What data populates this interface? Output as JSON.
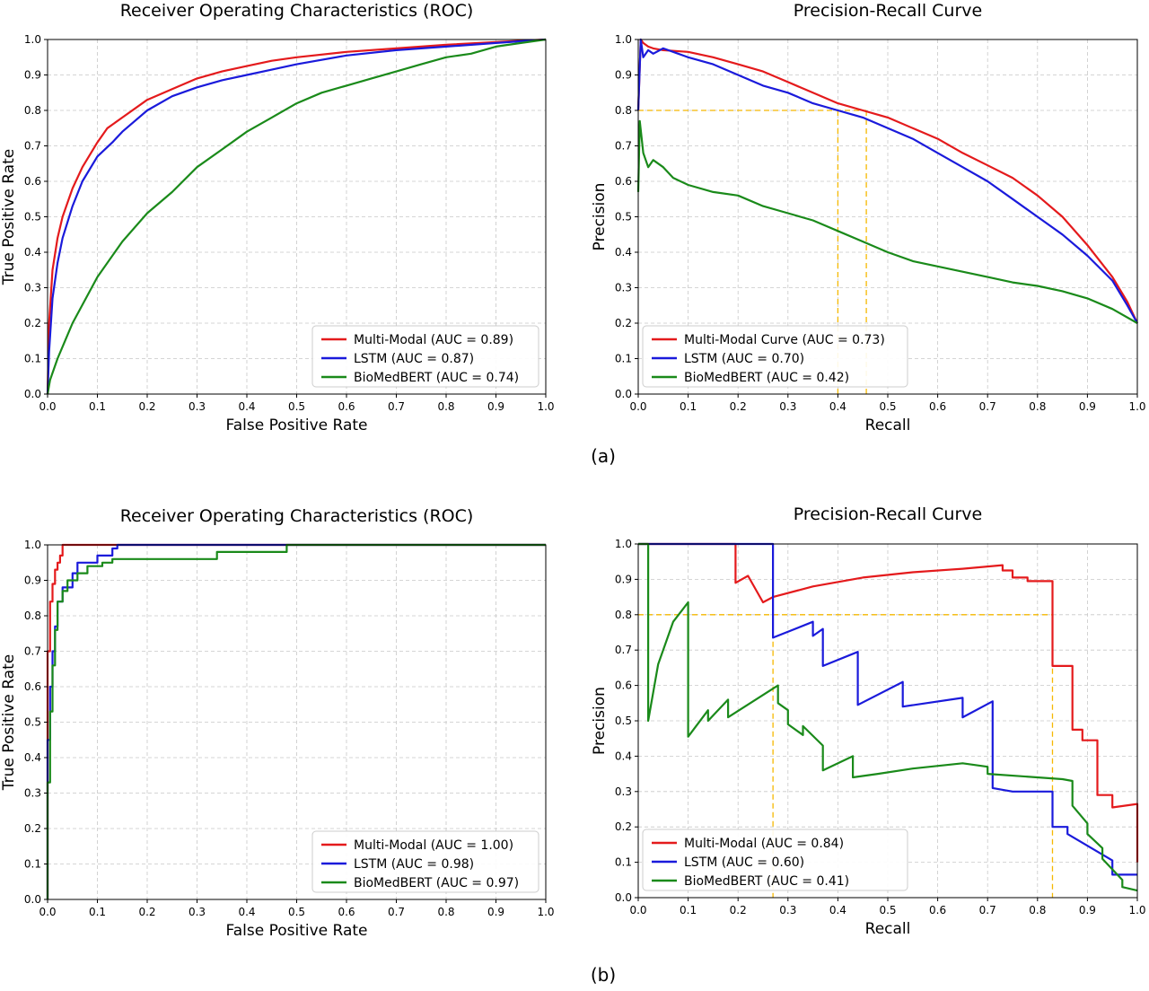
{
  "captions": [
    "(a)",
    "(b)"
  ],
  "chart_data": [
    {
      "type": "line",
      "panel": "(a)",
      "title": "Receiver Operating Characteristics (ROC)",
      "xlabel": "False Positive Rate",
      "ylabel": "True Positive Rate",
      "xlim": [
        0,
        1
      ],
      "ylim": [
        0,
        1
      ],
      "xticks": [
        "0.0",
        "0.1",
        "0.2",
        "0.3",
        "0.4",
        "0.5",
        "0.6",
        "0.7",
        "0.8",
        "0.9",
        "1.0"
      ],
      "yticks": [
        "0.0",
        "0.1",
        "0.2",
        "0.3",
        "0.4",
        "0.5",
        "0.6",
        "0.7",
        "0.8",
        "0.9",
        "1.0"
      ],
      "grid": true,
      "legend_position": "lower-right",
      "series": [
        {
          "name": "Multi-Modal (AUC = 0.89)",
          "color": "#e41a1c",
          "x": [
            0,
            0.003,
            0.01,
            0.02,
            0.03,
            0.05,
            0.07,
            0.1,
            0.12,
            0.15,
            0.2,
            0.25,
            0.3,
            0.35,
            0.4,
            0.45,
            0.5,
            0.6,
            0.7,
            0.8,
            0.9,
            1.0
          ],
          "y": [
            0,
            0.2,
            0.35,
            0.44,
            0.5,
            0.58,
            0.64,
            0.71,
            0.75,
            0.78,
            0.83,
            0.86,
            0.89,
            0.91,
            0.925,
            0.94,
            0.95,
            0.965,
            0.975,
            0.985,
            0.993,
            1.0
          ]
        },
        {
          "name": "LSTM (AUC = 0.87)",
          "color": "#1a1adb",
          "x": [
            0,
            0.003,
            0.01,
            0.02,
            0.03,
            0.05,
            0.07,
            0.1,
            0.13,
            0.15,
            0.2,
            0.25,
            0.3,
            0.35,
            0.4,
            0.45,
            0.5,
            0.6,
            0.7,
            0.8,
            0.9,
            1.0
          ],
          "y": [
            0,
            0.12,
            0.27,
            0.37,
            0.44,
            0.53,
            0.6,
            0.67,
            0.71,
            0.74,
            0.8,
            0.84,
            0.865,
            0.885,
            0.9,
            0.915,
            0.93,
            0.955,
            0.97,
            0.98,
            0.99,
            1.0
          ]
        },
        {
          "name": "BioMedBERT (AUC = 0.74)",
          "color": "#1a8a1a",
          "x": [
            0,
            0.005,
            0.02,
            0.05,
            0.1,
            0.15,
            0.2,
            0.25,
            0.3,
            0.35,
            0.4,
            0.45,
            0.5,
            0.55,
            0.6,
            0.65,
            0.7,
            0.75,
            0.8,
            0.85,
            0.9,
            0.95,
            1.0
          ],
          "y": [
            0,
            0.04,
            0.1,
            0.2,
            0.33,
            0.43,
            0.51,
            0.57,
            0.64,
            0.69,
            0.74,
            0.78,
            0.82,
            0.85,
            0.87,
            0.89,
            0.91,
            0.93,
            0.95,
            0.96,
            0.98,
            0.99,
            1.0
          ]
        }
      ]
    },
    {
      "type": "line",
      "panel": "(a)",
      "title": "Precision-Recall Curve",
      "xlabel": "Recall",
      "ylabel": "Precision",
      "xlim": [
        0,
        1
      ],
      "ylim": [
        0,
        1
      ],
      "xticks": [
        "0.0",
        "0.1",
        "0.2",
        "0.3",
        "0.4",
        "0.5",
        "0.6",
        "0.7",
        "0.8",
        "0.9",
        "1.0"
      ],
      "yticks": [
        "0.0",
        "0.1",
        "0.2",
        "0.3",
        "0.4",
        "0.5",
        "0.6",
        "0.7",
        "0.8",
        "0.9",
        "1.0"
      ],
      "grid": true,
      "legend_position": "lower-left",
      "series": [
        {
          "name": "Multi-Modal Curve (AUC = 0.73)",
          "color": "#e41a1c",
          "x": [
            0,
            0.005,
            0.01,
            0.02,
            0.03,
            0.05,
            0.1,
            0.15,
            0.2,
            0.25,
            0.3,
            0.35,
            0.4,
            0.45,
            0.5,
            0.55,
            0.6,
            0.65,
            0.7,
            0.75,
            0.8,
            0.85,
            0.9,
            0.95,
            0.98,
            1.0
          ],
          "y": [
            0.8,
            1.0,
            0.99,
            0.98,
            0.975,
            0.97,
            0.965,
            0.95,
            0.93,
            0.91,
            0.88,
            0.85,
            0.82,
            0.8,
            0.78,
            0.75,
            0.72,
            0.68,
            0.645,
            0.61,
            0.56,
            0.5,
            0.42,
            0.33,
            0.26,
            0.2
          ]
        },
        {
          "name": "LSTM (AUC = 0.70)",
          "color": "#1a1adb",
          "x": [
            0,
            0.005,
            0.01,
            0.02,
            0.03,
            0.05,
            0.08,
            0.1,
            0.15,
            0.2,
            0.25,
            0.3,
            0.35,
            0.4,
            0.45,
            0.5,
            0.55,
            0.6,
            0.65,
            0.7,
            0.75,
            0.8,
            0.85,
            0.9,
            0.95,
            0.98,
            1.0
          ],
          "y": [
            0.8,
            1.0,
            0.95,
            0.97,
            0.96,
            0.975,
            0.96,
            0.95,
            0.93,
            0.9,
            0.87,
            0.85,
            0.82,
            0.8,
            0.78,
            0.75,
            0.72,
            0.68,
            0.64,
            0.6,
            0.55,
            0.5,
            0.45,
            0.39,
            0.32,
            0.25,
            0.2
          ]
        },
        {
          "name": "BioMedBERT (AUC = 0.42)",
          "color": "#1a8a1a",
          "x": [
            0,
            0.003,
            0.01,
            0.02,
            0.03,
            0.05,
            0.07,
            0.1,
            0.15,
            0.2,
            0.25,
            0.3,
            0.35,
            0.4,
            0.45,
            0.5,
            0.55,
            0.6,
            0.65,
            0.7,
            0.75,
            0.8,
            0.85,
            0.9,
            0.95,
            1.0
          ],
          "y": [
            0.57,
            0.77,
            0.68,
            0.64,
            0.66,
            0.64,
            0.61,
            0.59,
            0.57,
            0.56,
            0.53,
            0.51,
            0.49,
            0.46,
            0.43,
            0.4,
            0.375,
            0.36,
            0.345,
            0.33,
            0.315,
            0.305,
            0.29,
            0.27,
            0.24,
            0.2
          ]
        }
      ],
      "reference_lines": {
        "color": "#f5b800",
        "y": 0.8,
        "x": [
          0.4,
          0.457
        ]
      }
    },
    {
      "type": "line",
      "panel": "(b)",
      "title": "Receiver Operating Characteristics (ROC)",
      "xlabel": "False Positive Rate",
      "ylabel": "True Positive Rate",
      "xlim": [
        0,
        1
      ],
      "ylim": [
        0,
        1
      ],
      "xticks": [
        "0.0",
        "0.1",
        "0.2",
        "0.3",
        "0.4",
        "0.5",
        "0.6",
        "0.7",
        "0.8",
        "0.9",
        "1.0"
      ],
      "yticks": [
        "0.0",
        "0.1",
        "0.2",
        "0.3",
        "0.4",
        "0.5",
        "0.6",
        "0.7",
        "0.8",
        "0.9",
        "1.0"
      ],
      "grid": true,
      "legend_position": "lower-right",
      "series": [
        {
          "name": "Multi-Modal (AUC = 1.00)",
          "color": "#e41a1c",
          "x": [
            0,
            0,
            0.005,
            0.005,
            0.01,
            0.01,
            0.015,
            0.015,
            0.02,
            0.02,
            0.025,
            0.025,
            0.03,
            0.03,
            1.0
          ],
          "y": [
            0,
            0.7,
            0.7,
            0.84,
            0.84,
            0.89,
            0.89,
            0.93,
            0.93,
            0.95,
            0.95,
            0.97,
            0.97,
            1.0,
            1.0
          ]
        },
        {
          "name": "LSTM (AUC = 0.98)",
          "color": "#1a1adb",
          "x": [
            0,
            0,
            0.005,
            0.005,
            0.01,
            0.01,
            0.015,
            0.015,
            0.02,
            0.02,
            0.03,
            0.03,
            0.05,
            0.05,
            0.06,
            0.06,
            0.1,
            0.1,
            0.13,
            0.13,
            0.14,
            0.14,
            1.0
          ],
          "y": [
            0,
            0.45,
            0.45,
            0.6,
            0.6,
            0.7,
            0.7,
            0.77,
            0.77,
            0.84,
            0.84,
            0.88,
            0.88,
            0.92,
            0.92,
            0.95,
            0.95,
            0.97,
            0.97,
            0.99,
            0.99,
            1.0,
            1.0
          ]
        },
        {
          "name": "BioMedBERT (AUC = 0.97)",
          "color": "#1a8a1a",
          "x": [
            0,
            0,
            0.005,
            0.005,
            0.01,
            0.01,
            0.015,
            0.015,
            0.02,
            0.02,
            0.03,
            0.03,
            0.04,
            0.04,
            0.06,
            0.06,
            0.08,
            0.08,
            0.11,
            0.11,
            0.13,
            0.13,
            0.34,
            0.34,
            0.48,
            0.48,
            1.0
          ],
          "y": [
            0,
            0.33,
            0.33,
            0.53,
            0.53,
            0.66,
            0.66,
            0.76,
            0.76,
            0.84,
            0.84,
            0.87,
            0.87,
            0.9,
            0.9,
            0.92,
            0.92,
            0.94,
            0.94,
            0.95,
            0.95,
            0.96,
            0.96,
            0.98,
            0.98,
            1.0,
            1.0
          ]
        }
      ]
    },
    {
      "type": "line",
      "panel": "(b)",
      "title": "Precision-Recall Curve",
      "xlabel": "Recall",
      "ylabel": "Precision",
      "xlim": [
        0,
        1
      ],
      "ylim": [
        0,
        1
      ],
      "xticks": [
        "0.0",
        "0.1",
        "0.2",
        "0.3",
        "0.4",
        "0.5",
        "0.6",
        "0.7",
        "0.8",
        "0.9",
        "1.0"
      ],
      "yticks": [
        "0.0",
        "0.1",
        "0.2",
        "0.3",
        "0.4",
        "0.5",
        "0.6",
        "0.7",
        "0.8",
        "0.9",
        "1.0"
      ],
      "grid": true,
      "legend_position": "lower-left",
      "series": [
        {
          "name": "Multi-Modal (AUC = 0.84)",
          "color": "#e41a1c",
          "x": [
            0,
            0.195,
            0.195,
            0.22,
            0.22,
            0.25,
            0.25,
            0.27,
            0.35,
            0.45,
            0.55,
            0.65,
            0.73,
            0.73,
            0.75,
            0.75,
            0.78,
            0.78,
            0.83,
            0.83,
            0.87,
            0.87,
            0.89,
            0.89,
            0.92,
            0.92,
            0.95,
            0.95,
            1.0,
            1.0
          ],
          "y": [
            1.0,
            1.0,
            0.89,
            0.91,
            0.91,
            0.835,
            0.835,
            0.85,
            0.88,
            0.905,
            0.92,
            0.93,
            0.94,
            0.925,
            0.925,
            0.905,
            0.905,
            0.895,
            0.895,
            0.655,
            0.655,
            0.475,
            0.475,
            0.445,
            0.445,
            0.29,
            0.29,
            0.255,
            0.265,
            0.1
          ]
        },
        {
          "name": "LSTM (AUC = 0.60)",
          "color": "#1a1adb",
          "x": [
            0,
            0.27,
            0.27,
            0.35,
            0.35,
            0.37,
            0.37,
            0.44,
            0.44,
            0.53,
            0.53,
            0.65,
            0.65,
            0.71,
            0.71,
            0.75,
            0.75,
            0.83,
            0.83,
            0.86,
            0.86,
            0.95,
            0.95,
            1.0
          ],
          "y": [
            1.0,
            1.0,
            0.735,
            0.78,
            0.74,
            0.76,
            0.655,
            0.695,
            0.545,
            0.61,
            0.54,
            0.565,
            0.51,
            0.555,
            0.31,
            0.3,
            0.3,
            0.3,
            0.2,
            0.2,
            0.18,
            0.105,
            0.065,
            0.065
          ]
        },
        {
          "name": "BioMedBERT (AUC = 0.41)",
          "color": "#1a8a1a",
          "x": [
            0,
            0.02,
            0.02,
            0.04,
            0.07,
            0.1,
            0.1,
            0.14,
            0.14,
            0.18,
            0.18,
            0.28,
            0.28,
            0.3,
            0.3,
            0.33,
            0.33,
            0.37,
            0.37,
            0.43,
            0.43,
            0.48,
            0.55,
            0.65,
            0.7,
            0.7,
            0.85,
            0.87,
            0.87,
            0.9,
            0.9,
            0.93,
            0.93,
            0.97,
            0.97,
            1.0
          ],
          "y": [
            1.0,
            1.0,
            0.5,
            0.66,
            0.78,
            0.835,
            0.455,
            0.53,
            0.5,
            0.56,
            0.51,
            0.6,
            0.55,
            0.53,
            0.49,
            0.46,
            0.485,
            0.43,
            0.36,
            0.4,
            0.34,
            0.35,
            0.365,
            0.38,
            0.37,
            0.35,
            0.335,
            0.33,
            0.26,
            0.21,
            0.18,
            0.14,
            0.11,
            0.05,
            0.03,
            0.02
          ]
        }
      ],
      "reference_lines": {
        "color": "#f5b800",
        "y": 0.8,
        "x": [
          0.27,
          0.83
        ]
      }
    }
  ]
}
